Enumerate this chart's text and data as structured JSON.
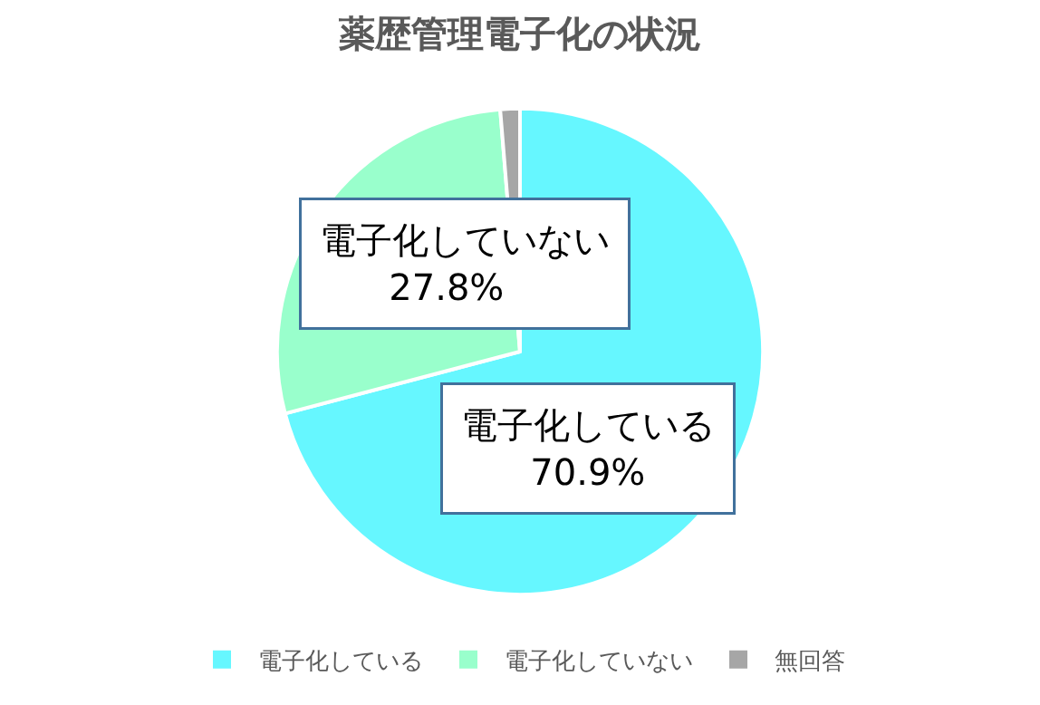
{
  "chart_data": {
    "type": "pie",
    "title": "薬歴管理電子化の状況",
    "categories": [
      "電子化している",
      "電子化していない",
      "無回答"
    ],
    "values": [
      70.9,
      27.8,
      1.3
    ],
    "colors": [
      "#66f7ff",
      "#99ffcc",
      "#a6a6a6"
    ],
    "value_labels": [
      "70.9%",
      "27.8%",
      null
    ],
    "legend": "bottom"
  }
}
